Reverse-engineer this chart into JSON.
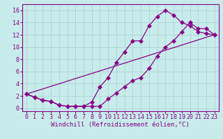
{
  "background_color": "#c8ecec",
  "grid_color": "#b0d8d8",
  "line_color": "#880088",
  "title": "",
  "xlabel": "Windchill (Refroidissement éolien,°C)",
  "xlabel_fontsize": 6.5,
  "tick_fontsize": 6,
  "xlim": [
    -0.5,
    23.5
  ],
  "ylim": [
    -0.5,
    17
  ],
  "xticks": [
    0,
    1,
    2,
    3,
    4,
    5,
    6,
    7,
    8,
    9,
    10,
    11,
    12,
    13,
    14,
    15,
    16,
    17,
    18,
    19,
    20,
    21,
    22,
    23
  ],
  "yticks": [
    0,
    2,
    4,
    6,
    8,
    10,
    12,
    14,
    16
  ],
  "line1_x": [
    0,
    1,
    2,
    3,
    4,
    5,
    6,
    7,
    8,
    9,
    10,
    11,
    12,
    13,
    14,
    15,
    16,
    17,
    18,
    19,
    20,
    21,
    22,
    23
  ],
  "line1_y": [
    2.3,
    1.8,
    1.3,
    1.1,
    0.5,
    0.3,
    0.3,
    0.3,
    1.0,
    3.5,
    5.0,
    7.5,
    9.2,
    11.0,
    11.0,
    13.5,
    15.0,
    16.0,
    15.2,
    14.0,
    13.5,
    12.5,
    12.2,
    12.0
  ],
  "line2_x": [
    0,
    1,
    2,
    3,
    4,
    5,
    6,
    7,
    8,
    9,
    10,
    11,
    12,
    13,
    14,
    15,
    16,
    17,
    18,
    19,
    20,
    21,
    22,
    23
  ],
  "line2_y": [
    2.3,
    1.8,
    1.3,
    1.1,
    0.5,
    0.3,
    0.3,
    0.3,
    0.3,
    0.3,
    1.5,
    2.5,
    3.5,
    4.5,
    5.0,
    6.5,
    8.5,
    10.0,
    11.0,
    12.5,
    14.0,
    13.0,
    13.0,
    12.0
  ],
  "line3_x": [
    0,
    23
  ],
  "line3_y": [
    2.3,
    12.0
  ]
}
